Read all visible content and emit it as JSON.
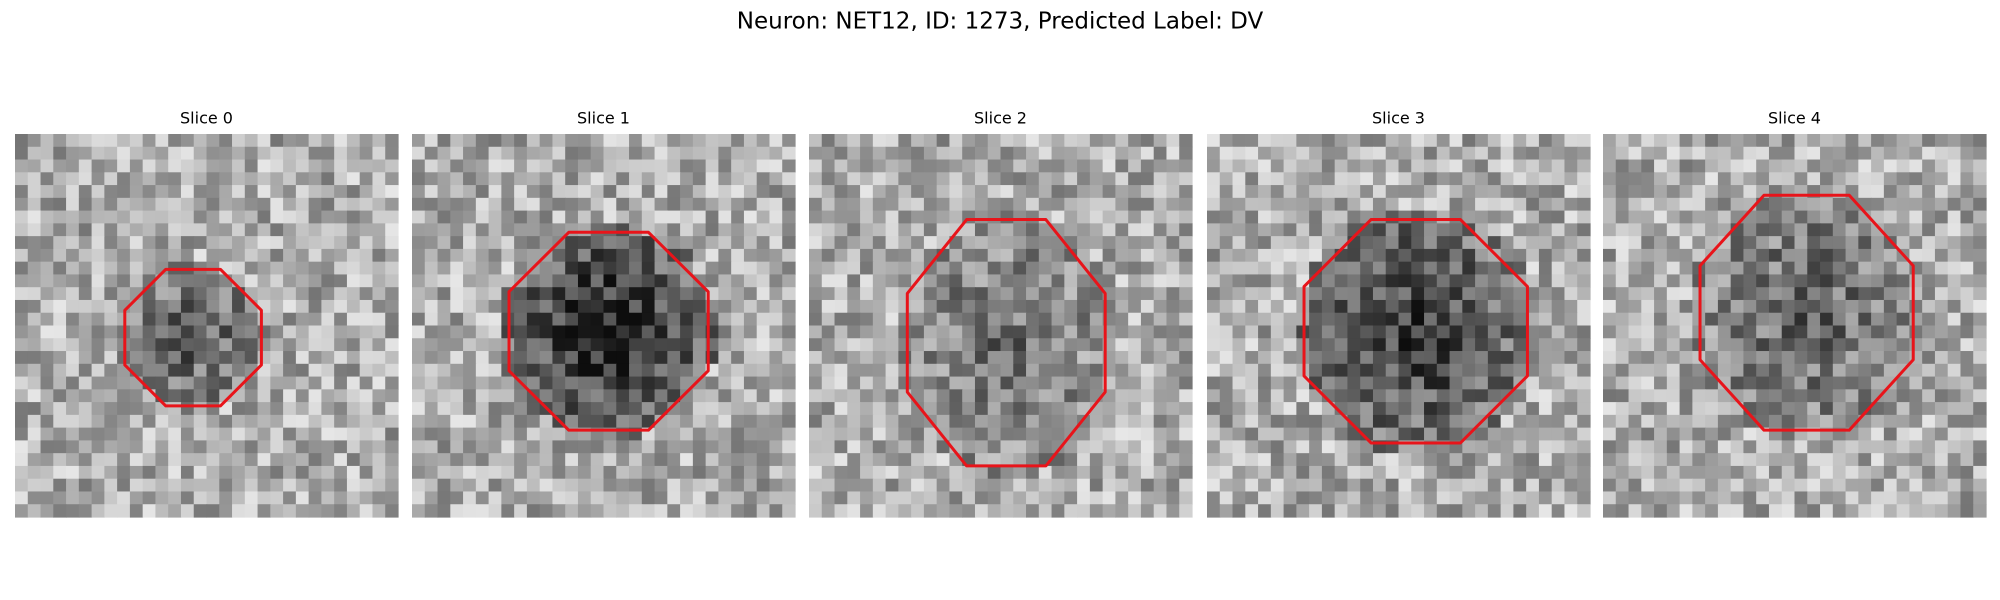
{
  "title": "Neuron: NET12, ID: 1273, Predicted Label: DV",
  "panels": [
    {
      "label": "Slice 0"
    },
    {
      "label": "Slice 1"
    },
    {
      "label": "Slice 2"
    },
    {
      "label": "Slice 3"
    },
    {
      "label": "Slice 4"
    }
  ]
}
